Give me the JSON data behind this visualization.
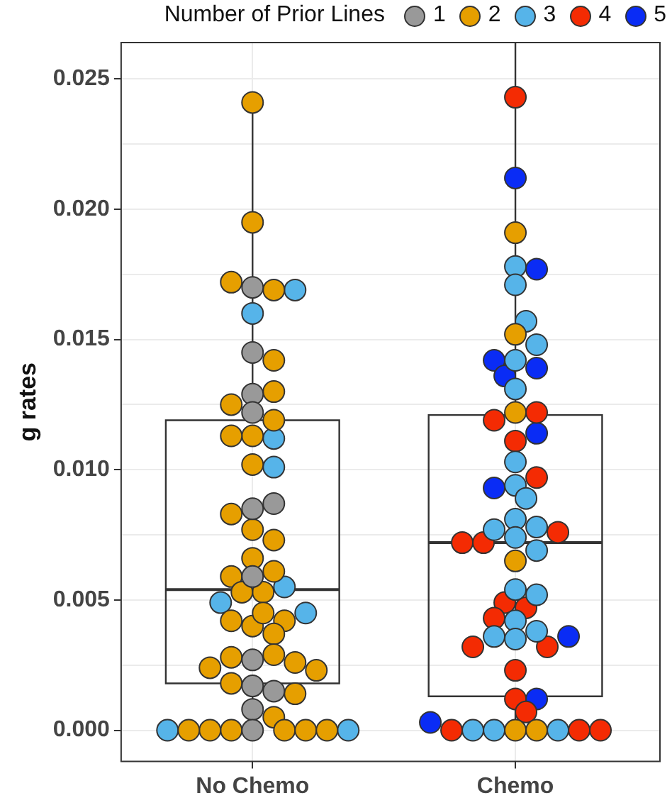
{
  "chart_data": {
    "type": "box",
    "ylabel": "g rates",
    "legend_title": "Number of Prior Lines",
    "legend": "top",
    "grid": true,
    "marker": "circle",
    "categories": [
      "No Chemo",
      "Chemo"
    ],
    "ylim": [
      -0.0012,
      0.0264
    ],
    "yticks": [
      {
        "value": 0,
        "label": "0.000"
      },
      {
        "value": 0.0025,
        "label": null
      },
      {
        "value": 0.005,
        "label": "0.005"
      },
      {
        "value": 0.0075,
        "label": null
      },
      {
        "value": 0.01,
        "label": "0.010"
      },
      {
        "value": 0.0125,
        "label": null
      },
      {
        "value": 0.015,
        "label": "0.015"
      },
      {
        "value": 0.0175,
        "label": null
      },
      {
        "value": 0.02,
        "label": "0.020"
      },
      {
        "value": 0.0225,
        "label": null
      },
      {
        "value": 0.025,
        "label": "0.025"
      }
    ],
    "boxes": [
      {
        "low": 0,
        "q1": 0.0018,
        "median": 0.0054,
        "q3": 0.0119,
        "high": 0.0241
      },
      {
        "low": 0,
        "q1": 0.0013,
        "median": 0.0072,
        "q3": 0.0121,
        "high": 0.0264
      }
    ],
    "series": [
      {
        "name": "1",
        "type": "scatter",
        "color": "#999999",
        "x": [
          "No Chemo",
          "No Chemo",
          "No Chemo",
          "No Chemo",
          "No Chemo",
          "No Chemo",
          "No Chemo",
          "No Chemo",
          "No Chemo",
          "No Chemo",
          "No Chemo",
          "No Chemo"
        ],
        "values": [
          0.017,
          0.0145,
          0.0129,
          0.0122,
          0.0085,
          0.0087,
          0.0059,
          0.0027,
          0.0017,
          0.0015,
          0.0008,
          0
        ]
      },
      {
        "name": "2",
        "type": "scatter",
        "color": "#e69f00",
        "x": [
          "No Chemo",
          "No Chemo",
          "No Chemo",
          "No Chemo",
          "No Chemo",
          "No Chemo",
          "No Chemo",
          "No Chemo",
          "No Chemo",
          "No Chemo",
          "No Chemo",
          "No Chemo",
          "No Chemo",
          "No Chemo",
          "No Chemo",
          "No Chemo",
          "No Chemo",
          "No Chemo",
          "No Chemo",
          "No Chemo",
          "No Chemo",
          "No Chemo",
          "No Chemo",
          "No Chemo",
          "No Chemo",
          "No Chemo",
          "No Chemo",
          "No Chemo",
          "No Chemo",
          "No Chemo",
          "No Chemo",
          "No Chemo",
          "No Chemo",
          "No Chemo",
          "No Chemo",
          "No Chemo",
          "No Chemo",
          "No Chemo",
          "Chemo",
          "Chemo",
          "Chemo",
          "Chemo",
          "Chemo",
          "Chemo"
        ],
        "values": [
          0.0241,
          0.0195,
          0.0169,
          0.0172,
          0.013,
          0.0142,
          0.0125,
          0.0119,
          0.0113,
          0.0113,
          0.0102,
          0.0083,
          0.0077,
          0.0073,
          0.0066,
          0.0061,
          0.0059,
          0.0053,
          0.0053,
          0.004,
          0.0045,
          0.0042,
          0.0042,
          0.0037,
          0.0029,
          0.0028,
          0.0026,
          0.0024,
          0.0023,
          0.0018,
          0.0014,
          0.0005,
          0,
          0,
          0,
          0,
          0,
          0,
          0.0191,
          0.0152,
          0.0122,
          0.0065,
          0,
          0
        ]
      },
      {
        "name": "3",
        "type": "scatter",
        "color": "#56b4e9",
        "x": [
          "No Chemo",
          "No Chemo",
          "No Chemo",
          "No Chemo",
          "No Chemo",
          "No Chemo",
          "No Chemo",
          "No Chemo",
          "No Chemo",
          "Chemo",
          "Chemo",
          "Chemo",
          "Chemo",
          "Chemo",
          "Chemo",
          "Chemo",
          "Chemo",
          "Chemo",
          "Chemo",
          "Chemo",
          "Chemo",
          "Chemo",
          "Chemo",
          "Chemo",
          "Chemo",
          "Chemo",
          "Chemo",
          "Chemo",
          "Chemo",
          "Chemo",
          "Chemo",
          "Chemo"
        ],
        "values": [
          0.0169,
          0.016,
          0.0112,
          0.0101,
          0.0055,
          0.0049,
          0.0045,
          0,
          0,
          0.0178,
          0.0171,
          0.0157,
          0.0148,
          0.0142,
          0.0131,
          0.0103,
          0.0094,
          0.0089,
          0.0081,
          0.0078,
          0.0074,
          0.0069,
          0.0077,
          0.0054,
          0.0052,
          0.0042,
          0.0038,
          0.0035,
          0.0036,
          0,
          0,
          0
        ]
      },
      {
        "name": "4",
        "type": "scatter",
        "color": "#f42b03",
        "x": [
          "Chemo",
          "Chemo",
          "Chemo",
          "Chemo",
          "Chemo",
          "Chemo",
          "Chemo",
          "Chemo",
          "Chemo",
          "Chemo",
          "Chemo",
          "Chemo",
          "Chemo",
          "Chemo",
          "Chemo",
          "Chemo",
          "Chemo",
          "Chemo",
          "Chemo"
        ],
        "values": [
          0.0243,
          0.0122,
          0.0119,
          0.0111,
          0.0097,
          0.0076,
          0.0072,
          0.0072,
          0.0047,
          0.0049,
          0.0043,
          0.0032,
          0.0032,
          0.0023,
          0.0012,
          0.0007,
          0,
          0,
          0
        ]
      },
      {
        "name": "5",
        "type": "scatter",
        "color": "#0a2cf5",
        "x": [
          "Chemo",
          "Chemo",
          "Chemo",
          "Chemo",
          "Chemo",
          "Chemo",
          "Chemo",
          "Chemo",
          "Chemo",
          "Chemo"
        ],
        "values": [
          0.0212,
          0.0177,
          0.0142,
          0.0139,
          0.0136,
          0.0114,
          0.0093,
          0.0036,
          0.0012,
          0.0003
        ]
      }
    ]
  }
}
